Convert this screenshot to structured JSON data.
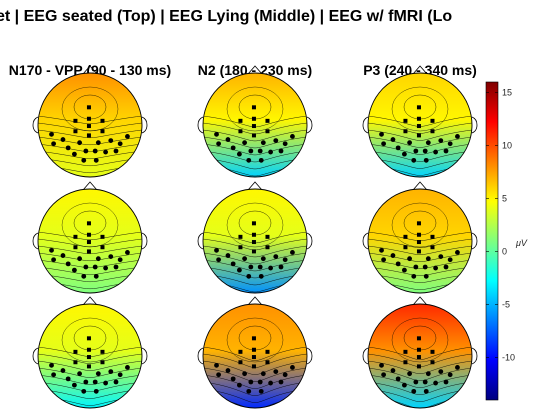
{
  "figure": {
    "title": "et | EEG seated (Top) | EEG Lying (Middle) | EEG w/ fMRI (Lo"
  },
  "chart_data": {
    "type": "heatmap",
    "subtype": "topographic-scalp-maps",
    "columns": [
      "N170 - VPP (90 - 130 ms)",
      "N2 (180 - 230 ms)",
      "P3 (240 - 340 ms)"
    ],
    "colorbar": {
      "colormap": "jet",
      "range": [
        -14,
        16
      ],
      "ticks": [
        "15",
        "10",
        "5",
        "0",
        "-5",
        "-10"
      ],
      "tick_values": [
        15,
        10,
        5,
        0,
        -5,
        -10
      ],
      "unit": "μV"
    },
    "maps": [
      {
        "row": 0,
        "col": 0,
        "top_value": 8,
        "bottom_value": 4,
        "center_value": 6
      },
      {
        "row": 0,
        "col": 1,
        "top_value": 7,
        "bottom_value": -4,
        "center_value": 5
      },
      {
        "row": 0,
        "col": 2,
        "top_value": 6,
        "bottom_value": -4,
        "center_value": 5
      },
      {
        "row": 1,
        "col": 0,
        "top_value": 5,
        "bottom_value": 1,
        "center_value": 4
      },
      {
        "row": 1,
        "col": 1,
        "top_value": 5,
        "bottom_value": -6,
        "center_value": 4
      },
      {
        "row": 1,
        "col": 2,
        "top_value": 7,
        "bottom_value": 1,
        "center_value": 6
      },
      {
        "row": 2,
        "col": 0,
        "top_value": 5,
        "bottom_value": -3,
        "center_value": 4
      },
      {
        "row": 2,
        "col": 1,
        "top_value": 8,
        "bottom_value": -9,
        "center_value": 7
      },
      {
        "row": 2,
        "col": 2,
        "top_value": 11,
        "bottom_value": -4,
        "center_value": 8
      }
    ]
  },
  "colors": {
    "background": "#ffffff",
    "text": "#000000",
    "outline": "#000000"
  }
}
